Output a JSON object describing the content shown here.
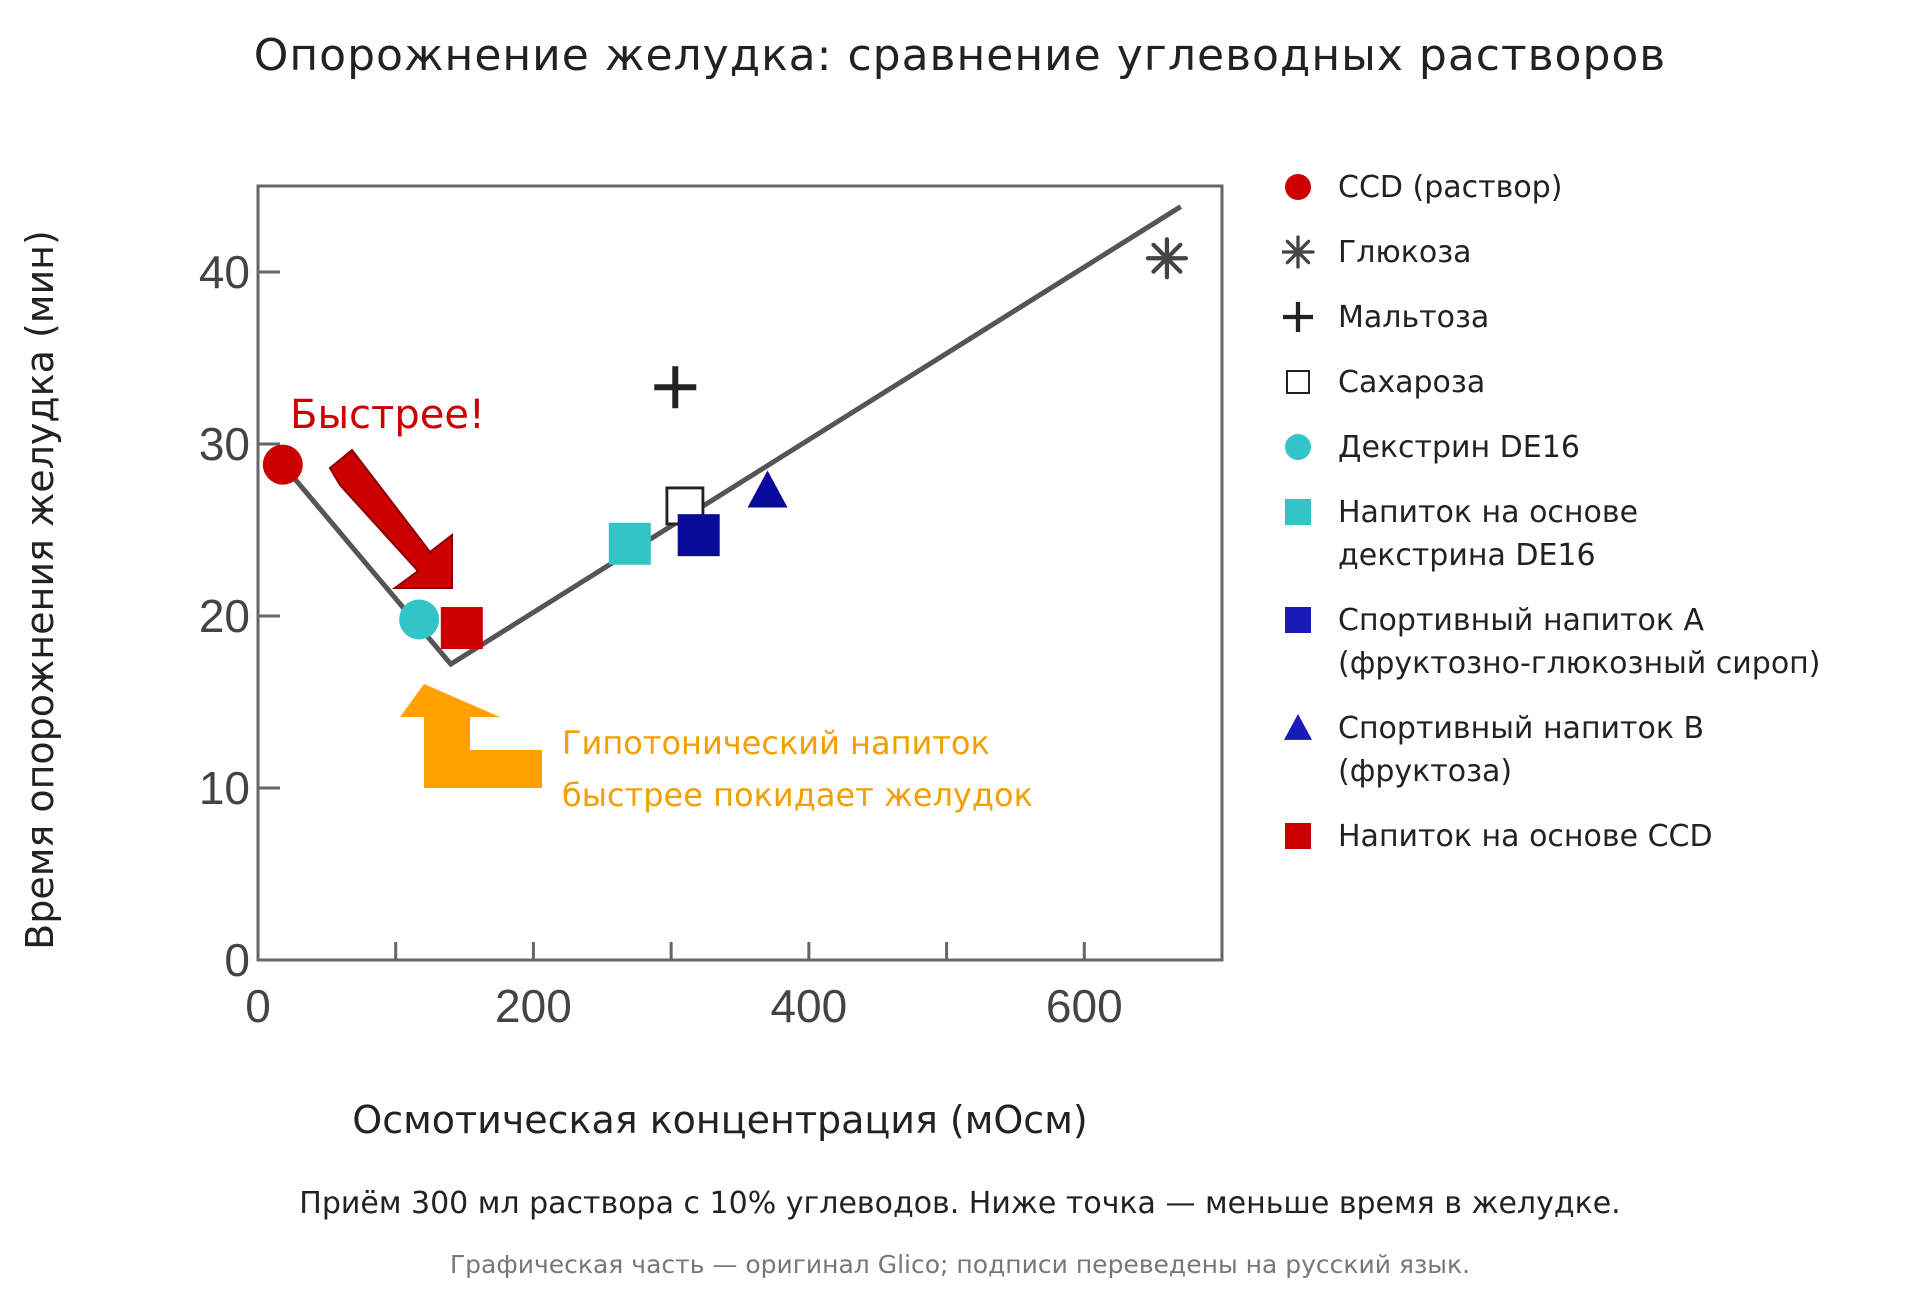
{
  "page": {
    "title": "Опорожнение желудка: сравнение углеводных растворов",
    "caption": "Приём 300 мл раствора с 10% углеводов. Ниже точка — меньше время в желудке.",
    "source_note": "Графическая часть — оригинал Glico; подписи переведены на русский язык."
  },
  "chart_data": {
    "type": "scatter",
    "xlabel": "Осмотическая концентрация (мОсм)",
    "ylabel": "Время опорожнения желудка (мин)",
    "xlim": [
      0,
      700
    ],
    "ylim": [
      0,
      45
    ],
    "xticks": [
      0,
      200,
      400,
      600
    ],
    "xticks_minor": [
      100,
      300,
      500
    ],
    "yticks": [
      0,
      10,
      20,
      30,
      40
    ],
    "grid": false,
    "legend_position": "right",
    "series": [
      {
        "name": "CCD (раствор)",
        "marker": "circle",
        "color": "#cc0000",
        "points": [
          {
            "x": 18,
            "y": 28.8
          }
        ]
      },
      {
        "name": "Глюкоза",
        "marker": "asterisk",
        "color": "#444444",
        "points": [
          {
            "x": 660,
            "y": 40.8
          }
        ]
      },
      {
        "name": "Мальтоза",
        "marker": "plus",
        "color": "#222222",
        "points": [
          {
            "x": 303,
            "y": 33.3
          }
        ]
      },
      {
        "name": "Сахароза",
        "marker": "open-square",
        "color": "#222222",
        "points": [
          {
            "x": 310,
            "y": 26.4
          }
        ]
      },
      {
        "name": "Декстрин DE16",
        "marker": "circle",
        "color": "#33c4c8",
        "points": [
          {
            "x": 117,
            "y": 19.8
          }
        ]
      },
      {
        "name": "Напиток на основе\nдекстрина DE16",
        "marker": "square",
        "color": "#33c4c8",
        "points": [
          {
            "x": 270,
            "y": 24.2
          }
        ]
      },
      {
        "name": "Спортивный напиток A\n(фруктозно-глюкозный сироп)",
        "marker": "square",
        "color": "#0a0a9a",
        "points": [
          {
            "x": 320,
            "y": 24.7
          }
        ]
      },
      {
        "name": "Спортивный напиток B\n(фруктоза)",
        "marker": "triangle",
        "color": "#0a0a9a",
        "points": [
          {
            "x": 370,
            "y": 27.3
          }
        ]
      },
      {
        "name": "Напиток на основе CCD",
        "marker": "square",
        "color": "#cc0000",
        "points": [
          {
            "x": 148,
            "y": 19.3
          }
        ]
      }
    ],
    "trend_line": {
      "color": "#555555",
      "points": [
        {
          "x": 18,
          "y": 28.8
        },
        {
          "x": 140,
          "y": 17.2
        },
        {
          "x": 670,
          "y": 43.8
        }
      ]
    },
    "annotations": {
      "faster": {
        "text": "Быстрее!",
        "color": "#cc0000"
      },
      "hypotonic": {
        "line1": "Гипотонический напиток",
        "line2": "быстрее покидает желудок",
        "color": "#f0a000"
      }
    }
  },
  "legend_colors": {
    "CCD (раствор)": "#cc0000",
    "Декстрин DE16": "#33c4c8",
    "Напиток на основе\nдекстрина DE16": "#33c4c8",
    "Спортивный напиток A\n(фруктозно-глюкозный сироп)": "#1a1ab8",
    "Спортивный напиток B\n(фруктоза)": "#1a1ab8",
    "Напиток на основе CCD": "#cc0000"
  }
}
